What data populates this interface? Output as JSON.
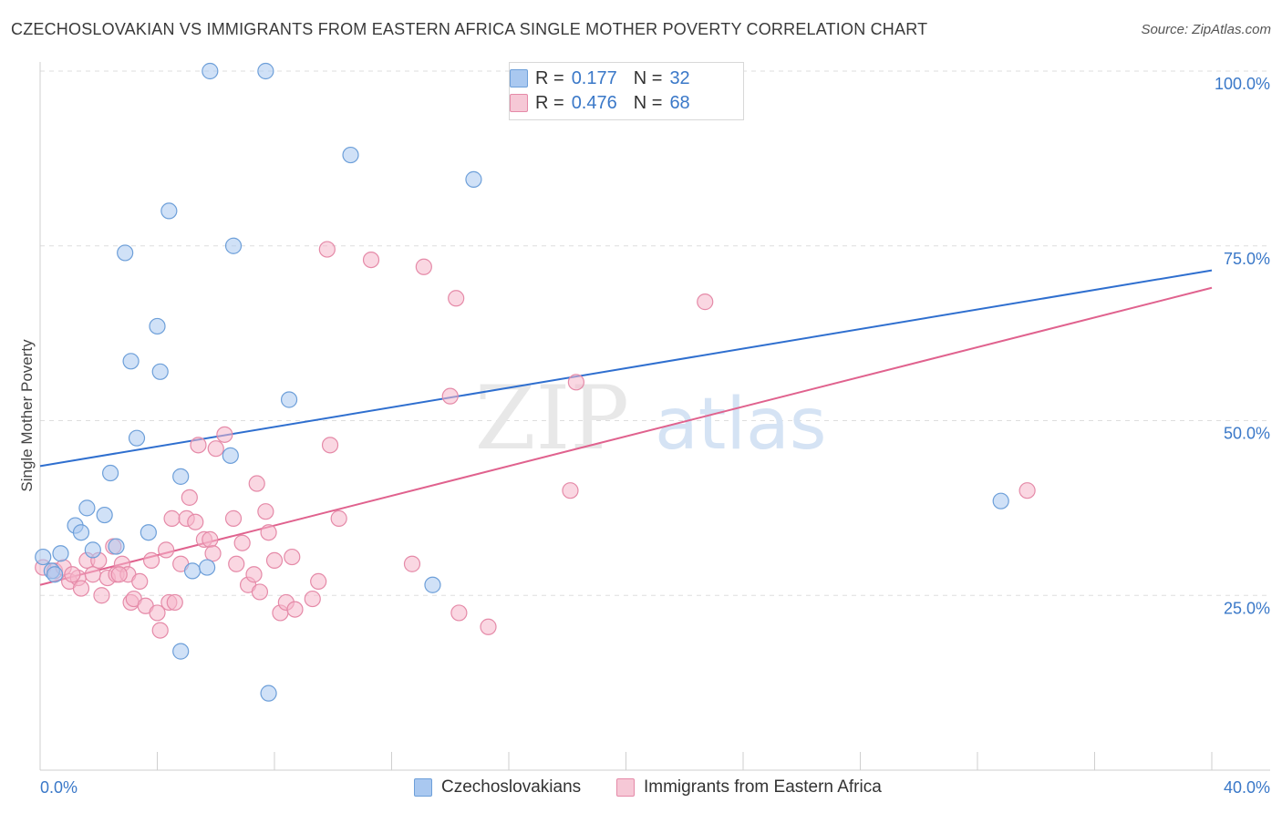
{
  "title": "CZECHOSLOVAKIAN VS IMMIGRANTS FROM EASTERN AFRICA SINGLE MOTHER POVERTY CORRELATION CHART",
  "source": "Source: ZipAtlas.com",
  "watermark": {
    "zip": "ZIP",
    "atlas": "atlas"
  },
  "legend": {
    "rows": [
      {
        "r_label": "R =",
        "r_value": "0.177",
        "n_label": "N =",
        "n_value": "32"
      },
      {
        "r_label": "R =",
        "r_value": "0.476",
        "n_label": "N =",
        "n_value": "68"
      }
    ]
  },
  "bottom_legend": [
    "Czechoslovakians",
    "Immigrants from Eastern Africa"
  ],
  "colors": {
    "blue_fill": "#a9c8f0",
    "blue_stroke": "#6d9fd9",
    "blue_line": "#2f6fcf",
    "pink_fill": "#f6b7ca",
    "pink_stroke": "#e58aa8",
    "pink_line": "#e0628e",
    "axis_text": "#3a78c8"
  },
  "chart_data": {
    "type": "scatter",
    "title": "CZECHOSLOVAKIAN VS IMMIGRANTS FROM EASTERN AFRICA SINGLE MOTHER POVERTY CORRELATION CHART",
    "xlabel": "",
    "ylabel": "Single Mother Poverty",
    "xlim": [
      0,
      40
    ],
    "ylim": [
      0,
      100
    ],
    "x_tick_labels": [
      "0.0%",
      "40.0%"
    ],
    "y_tick_values": [
      25,
      50,
      75,
      100
    ],
    "y_tick_labels": [
      "25.0%",
      "50.0%",
      "75.0%",
      "100.0%"
    ],
    "grid": true,
    "series": [
      {
        "name": "Czechoslovakians",
        "r": 0.177,
        "n": 32,
        "trend": {
          "x": [
            0,
            40
          ],
          "y": [
            43.5,
            71.5
          ]
        },
        "points": [
          [
            0.1,
            30.5
          ],
          [
            0.4,
            28.5
          ],
          [
            0.7,
            31.0
          ],
          [
            1.8,
            31.5
          ],
          [
            1.2,
            35.0
          ],
          [
            1.4,
            34.0
          ],
          [
            1.6,
            37.5
          ],
          [
            2.2,
            36.5
          ],
          [
            2.6,
            32.0
          ],
          [
            2.4,
            42.5
          ],
          [
            3.3,
            47.5
          ],
          [
            3.7,
            34.0
          ],
          [
            4.0,
            63.5
          ],
          [
            3.1,
            58.5
          ],
          [
            4.1,
            57.0
          ],
          [
            2.9,
            74.0
          ],
          [
            4.4,
            80.0
          ],
          [
            4.8,
            42.0
          ],
          [
            5.2,
            28.5
          ],
          [
            5.7,
            29.0
          ],
          [
            5.8,
            100.0
          ],
          [
            6.6,
            75.0
          ],
          [
            7.7,
            100.0
          ],
          [
            6.5,
            45.0
          ],
          [
            8.5,
            53.0
          ],
          [
            10.6,
            88.0
          ],
          [
            14.8,
            84.5
          ],
          [
            13.4,
            26.5
          ],
          [
            4.8,
            17.0
          ],
          [
            7.8,
            11.0
          ],
          [
            32.8,
            38.5
          ],
          [
            0.5,
            28.0
          ]
        ]
      },
      {
        "name": "Immigrants from Eastern Africa",
        "r": 0.476,
        "n": 68,
        "trend": {
          "x": [
            0,
            40
          ],
          "y": [
            26.5,
            69.0
          ]
        },
        "points": [
          [
            0.1,
            29.0
          ],
          [
            0.5,
            28.5
          ],
          [
            0.8,
            29.0
          ],
          [
            1.0,
            27.0
          ],
          [
            1.3,
            27.5
          ],
          [
            1.4,
            26.0
          ],
          [
            1.6,
            30.0
          ],
          [
            1.8,
            28.0
          ],
          [
            2.0,
            30.0
          ],
          [
            2.1,
            25.0
          ],
          [
            2.3,
            27.5
          ],
          [
            2.5,
            32.0
          ],
          [
            2.6,
            28.0
          ],
          [
            2.8,
            29.5
          ],
          [
            3.0,
            28.0
          ],
          [
            3.1,
            24.0
          ],
          [
            3.2,
            24.5
          ],
          [
            3.4,
            27.0
          ],
          [
            3.6,
            23.5
          ],
          [
            3.8,
            30.0
          ],
          [
            4.0,
            22.5
          ],
          [
            4.1,
            20.0
          ],
          [
            4.3,
            31.5
          ],
          [
            4.4,
            24.0
          ],
          [
            4.5,
            36.0
          ],
          [
            4.8,
            29.5
          ],
          [
            5.0,
            36.0
          ],
          [
            5.1,
            39.0
          ],
          [
            5.3,
            35.5
          ],
          [
            5.4,
            46.5
          ],
          [
            5.6,
            33.0
          ],
          [
            5.8,
            33.0
          ],
          [
            5.9,
            31.0
          ],
          [
            6.0,
            46.0
          ],
          [
            6.3,
            48.0
          ],
          [
            6.6,
            36.0
          ],
          [
            6.7,
            29.5
          ],
          [
            6.9,
            32.5
          ],
          [
            7.1,
            26.5
          ],
          [
            7.3,
            28.0
          ],
          [
            7.4,
            41.0
          ],
          [
            7.5,
            25.5
          ],
          [
            7.7,
            37.0
          ],
          [
            7.8,
            34.0
          ],
          [
            8.0,
            30.0
          ],
          [
            8.2,
            22.5
          ],
          [
            8.4,
            24.0
          ],
          [
            8.6,
            30.5
          ],
          [
            8.7,
            23.0
          ],
          [
            9.3,
            24.5
          ],
          [
            9.5,
            27.0
          ],
          [
            9.9,
            46.5
          ],
          [
            9.8,
            74.5
          ],
          [
            10.2,
            36.0
          ],
          [
            11.3,
            73.0
          ],
          [
            12.7,
            29.5
          ],
          [
            13.1,
            72.0
          ],
          [
            14.0,
            53.5
          ],
          [
            14.2,
            67.5
          ],
          [
            14.3,
            22.5
          ],
          [
            15.3,
            20.5
          ],
          [
            18.1,
            40.0
          ],
          [
            18.3,
            55.5
          ],
          [
            22.7,
            67.0
          ],
          [
            33.7,
            40.0
          ],
          [
            1.1,
            28.0
          ],
          [
            2.7,
            28.0
          ],
          [
            4.6,
            24.0
          ]
        ]
      }
    ]
  }
}
